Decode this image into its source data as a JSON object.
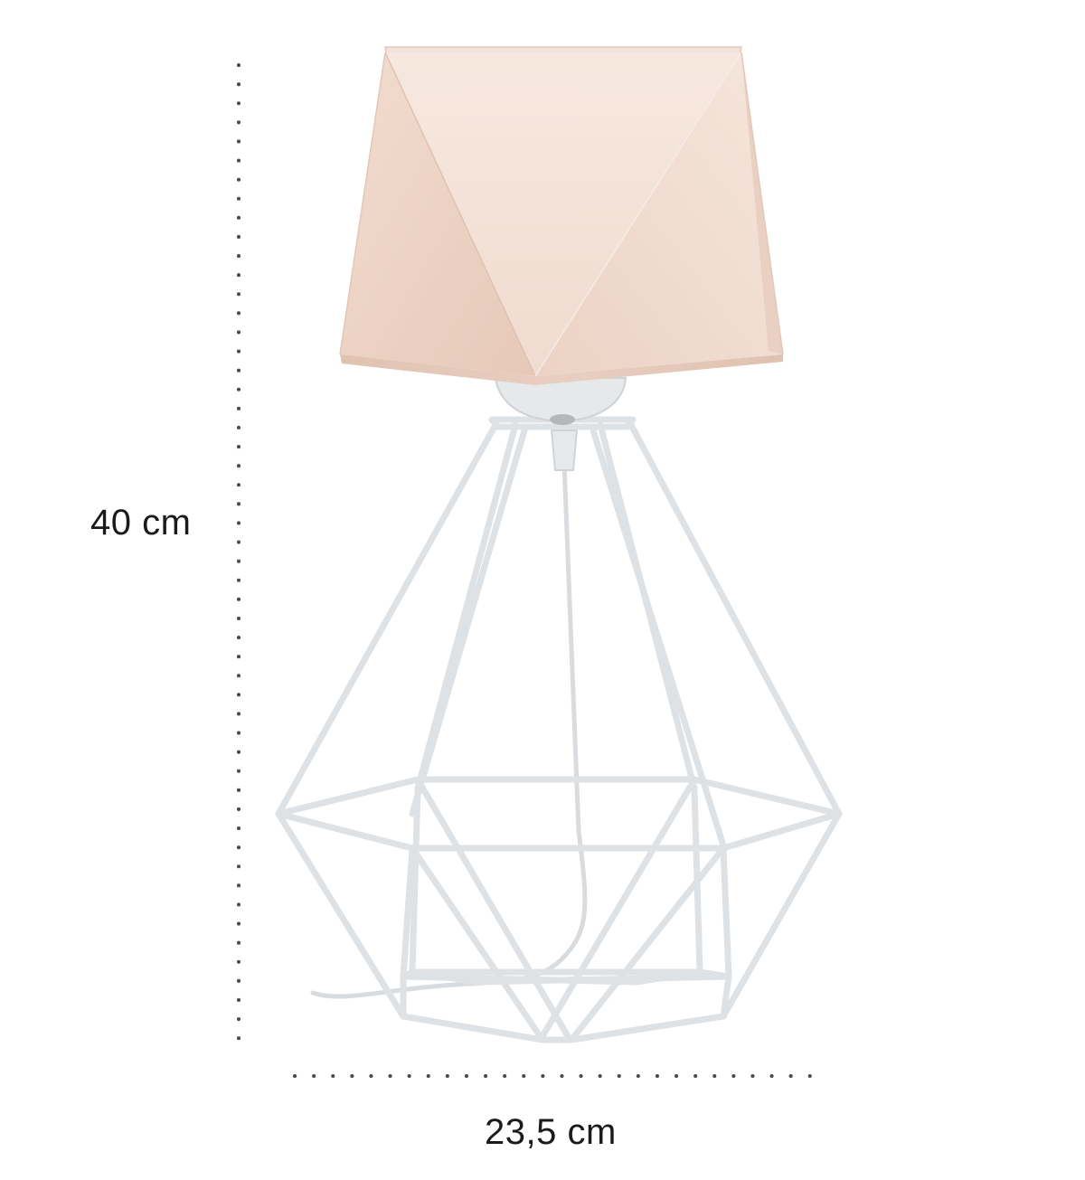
{
  "dimensions": {
    "height_label": "40 cm",
    "width_label": "23,5 cm"
  },
  "colors": {
    "shade": "#ecd2c4",
    "frame": "#e4e6e8",
    "text": "#1b1b1b",
    "dots": "#4a4a4a"
  }
}
